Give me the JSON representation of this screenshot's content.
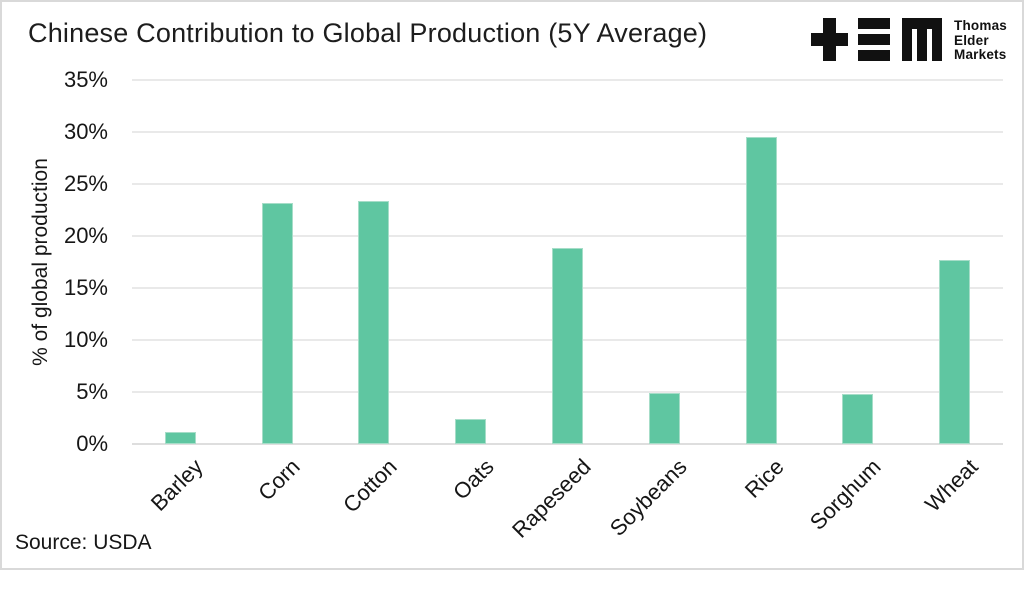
{
  "header": {
    "title": "Chinese Contribution to Global Production (5Y Average)",
    "logo": {
      "line1": "Thomas",
      "line2": "Elder",
      "line3": "Markets"
    }
  },
  "chart_data": {
    "type": "bar",
    "title": "Chinese Contribution to Global Production (5Y Average)",
    "categories": [
      "Barley",
      "Corn",
      "Cotton",
      "Oats",
      "Rapeseed",
      "Soybeans",
      "Rice",
      "Sorghum",
      "Wheat"
    ],
    "values": [
      1.2,
      23.2,
      23.4,
      2.4,
      18.8,
      4.9,
      29.5,
      4.8,
      17.7
    ],
    "xlabel": "",
    "ylabel": "% of global production",
    "ylim": [
      0,
      35
    ],
    "yticks": [
      0,
      5,
      10,
      15,
      20,
      25,
      30,
      35
    ],
    "ytick_labels": [
      "0%",
      "5%",
      "10%",
      "15%",
      "20%",
      "25%",
      "30%",
      "35%"
    ],
    "grid": true,
    "legend": null
  },
  "footer": {
    "source": "Source: USDA"
  },
  "colors": {
    "bar": "#5fc6a1",
    "bar_edge": "#a6ddc8",
    "grid": "#e9e9e9",
    "text": "#161616",
    "background": "#ffffff",
    "frame_border": "#d9d9d9",
    "logo": "#111111"
  }
}
